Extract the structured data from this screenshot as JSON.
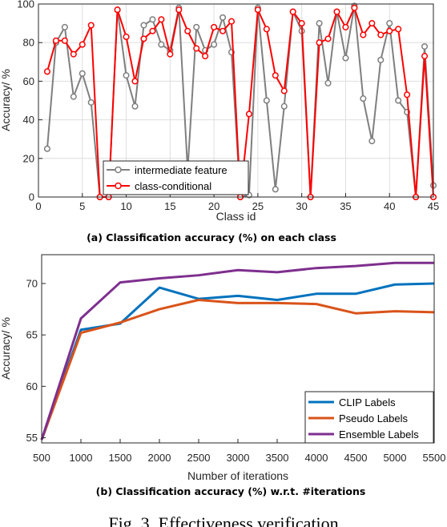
{
  "chart_data": [
    {
      "type": "line",
      "caption": "(a) Classification accuracy (%) on each class",
      "xlabel": "Class id",
      "ylabel": "Accuracy/ %",
      "xlim": [
        0,
        45
      ],
      "ylim": [
        0,
        100
      ],
      "xticks": [
        0,
        5,
        10,
        15,
        20,
        25,
        30,
        35,
        40,
        45
      ],
      "yticks": [
        0,
        20,
        40,
        60,
        80,
        100
      ],
      "grid": true,
      "legend_position": "lower-left",
      "x": [
        1,
        2,
        3,
        4,
        5,
        6,
        7,
        8,
        9,
        10,
        11,
        12,
        13,
        14,
        15,
        16,
        17,
        18,
        19,
        20,
        21,
        22,
        23,
        24,
        25,
        26,
        27,
        28,
        29,
        30,
        31,
        32,
        33,
        34,
        35,
        36,
        37,
        38,
        39,
        40,
        41,
        42,
        43,
        44,
        45
      ],
      "series": [
        {
          "name": "intermediate feature",
          "color": "#7f7f7f",
          "marker_color": "#7f7f7f",
          "values": [
            25,
            80,
            88,
            52,
            64,
            49,
            0,
            0,
            97,
            63,
            47,
            89,
            92,
            79,
            76,
            98,
            14,
            88,
            76,
            79,
            93,
            75,
            0,
            1,
            98,
            50,
            4,
            47,
            96,
            86,
            0,
            90,
            59,
            96,
            72,
            99,
            51,
            29,
            71,
            90,
            50,
            44,
            0,
            78,
            6
          ]
        },
        {
          "name": "class-conditional",
          "color": "#ff0000",
          "marker_color": "#ff0000",
          "values": [
            65,
            81,
            81,
            74,
            79,
            89,
            0,
            0,
            97,
            83,
            60,
            82,
            86,
            92,
            74,
            97,
            86,
            77,
            73,
            88,
            86,
            91,
            0,
            43,
            97,
            87,
            63,
            55,
            96,
            90,
            0,
            80,
            82,
            96,
            88,
            98,
            84,
            90,
            84,
            86,
            87,
            53,
            0,
            73,
            0
          ]
        }
      ]
    },
    {
      "type": "line",
      "caption": "(b) Classification accuracy (%) w.r.t. #iterations",
      "xlabel": "Number of iterations",
      "ylabel": "Accuracy/ %",
      "xlim": [
        500,
        5500
      ],
      "ylim": [
        54.5,
        72.8
      ],
      "xticks": [
        500,
        1000,
        1500,
        2000,
        2500,
        3000,
        3500,
        4000,
        4500,
        5000,
        5500
      ],
      "yticks": [
        55,
        60,
        65,
        70
      ],
      "grid": false,
      "legend_position": "lower-right",
      "x": [
        500,
        1000,
        1500,
        2000,
        2500,
        3000,
        3500,
        4000,
        4500,
        5000,
        5500
      ],
      "series": [
        {
          "name": "CLIP Labels",
          "color": "#0072bd",
          "values": [
            54.8,
            65.5,
            66.1,
            69.6,
            68.5,
            68.8,
            68.4,
            69.0,
            69.0,
            69.9,
            70.0
          ]
        },
        {
          "name": "Pseudo Labels",
          "color": "#d95319",
          "values": [
            54.8,
            65.2,
            66.2,
            67.5,
            68.4,
            68.1,
            68.1,
            68.0,
            67.1,
            67.3,
            67.2
          ]
        },
        {
          "name": "Ensemble Labels",
          "color": "#7e2f8e",
          "values": [
            54.8,
            66.6,
            70.1,
            70.5,
            70.8,
            71.3,
            71.1,
            71.5,
            71.7,
            72.0,
            72.0
          ]
        }
      ]
    }
  ],
  "figure_caption": "Fig. 3. Effectiveness verification"
}
